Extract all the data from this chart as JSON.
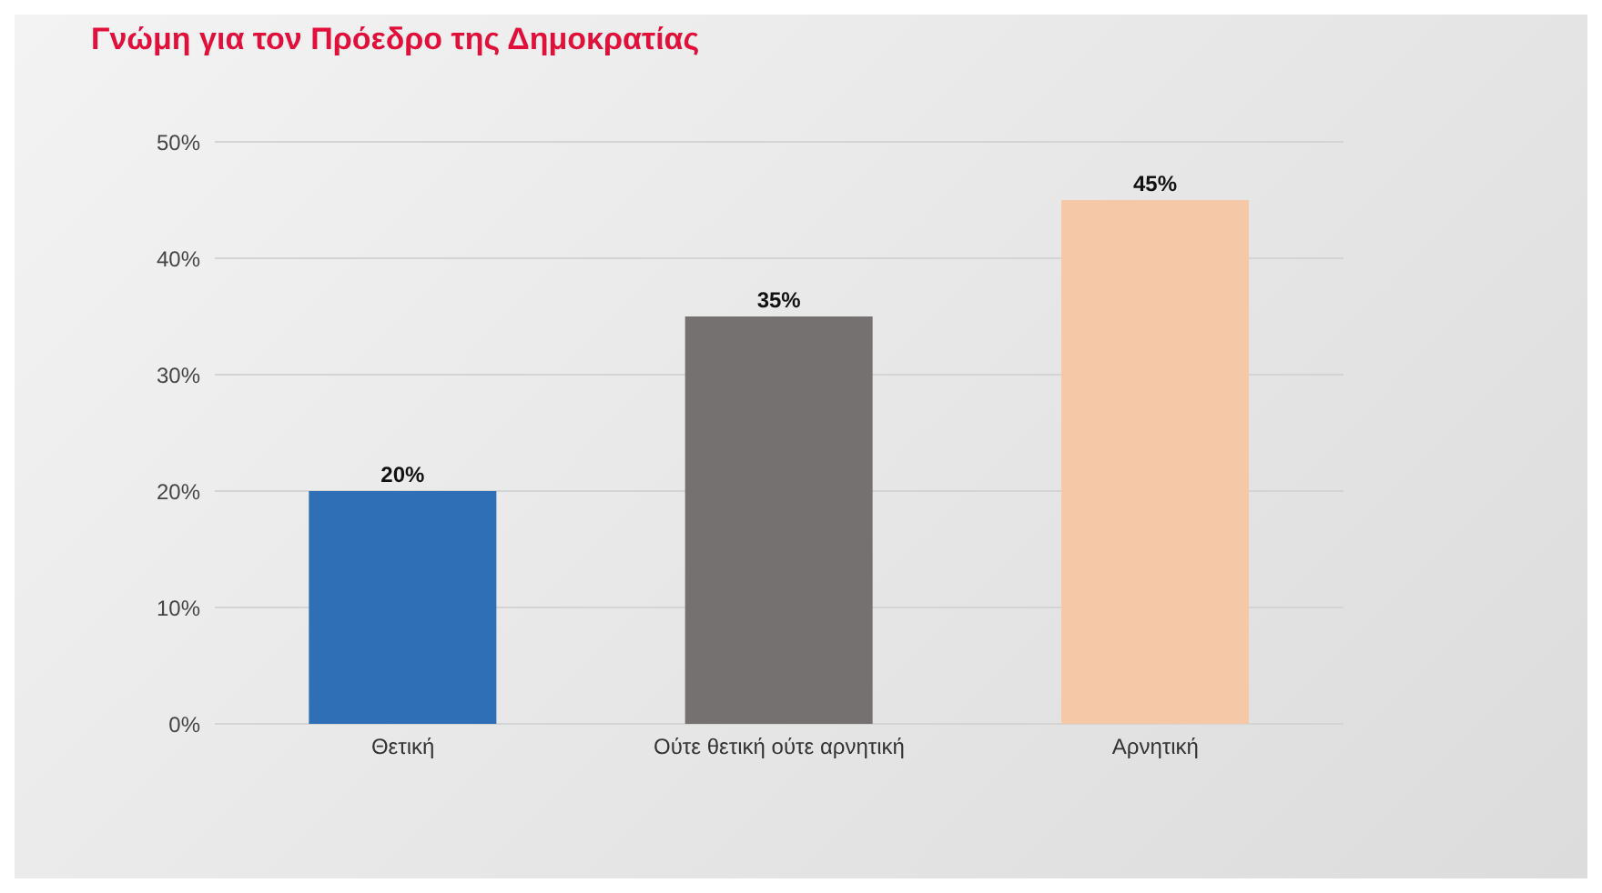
{
  "chart_data": {
    "type": "bar",
    "title": "Γνώμη για τον Πρόεδρο της Δημοκρατίας",
    "categories": [
      "Θετική",
      "Ούτε θετική ούτε αρνητική",
      "Αρνητική"
    ],
    "values": [
      20,
      35,
      45
    ],
    "colors": [
      "#2e6fb5",
      "#767171",
      "#f5c8a8"
    ],
    "value_labels": [
      "20%",
      "35%",
      "45%"
    ],
    "ylim": [
      0,
      50
    ],
    "yticks": [
      {
        "value": 0,
        "label": "0%"
      },
      {
        "value": 10,
        "label": "10%"
      },
      {
        "value": 20,
        "label": "20%"
      },
      {
        "value": 30,
        "label": "30%"
      },
      {
        "value": 40,
        "label": "40%"
      },
      {
        "value": 50,
        "label": "50%"
      }
    ],
    "grid": "y",
    "legend": false
  }
}
